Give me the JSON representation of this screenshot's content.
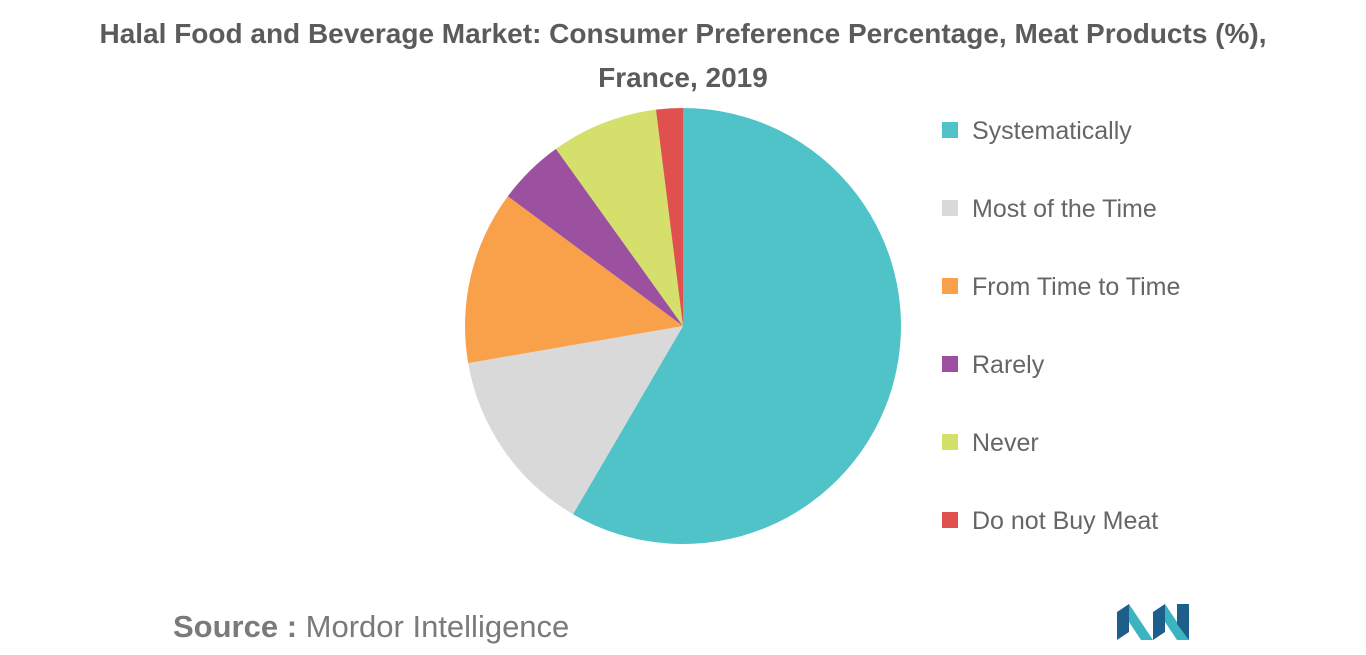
{
  "chart_data": {
    "type": "pie",
    "title": "Halal Food and Beverage Market: Consumer Preference Percentage, Meat Products (%), France, 2019",
    "title_lines": [
      "Halal Food and Beverage Market: Consumer Preference Percentage, Meat Products (%),",
      "France, 2019"
    ],
    "categories": [
      "Systematically",
      "Most of the Time",
      "From Time to Time",
      "Rarely",
      "Never",
      "Do not Buy Meat"
    ],
    "values": [
      59,
      14,
      13,
      5,
      8,
      2
    ],
    "colors": [
      "#4fc3c8",
      "#d9d9d9",
      "#f9a04a",
      "#9b51a0",
      "#d4e06b",
      "#e0504f"
    ],
    "legend_position": "right"
  },
  "source": {
    "key": "Source :",
    "value": "Mordor Intelligence"
  },
  "logo": {
    "icon": "mordor-intelligence-logo-icon",
    "colors": [
      "#1d5f8a",
      "#3bb4c1"
    ]
  }
}
